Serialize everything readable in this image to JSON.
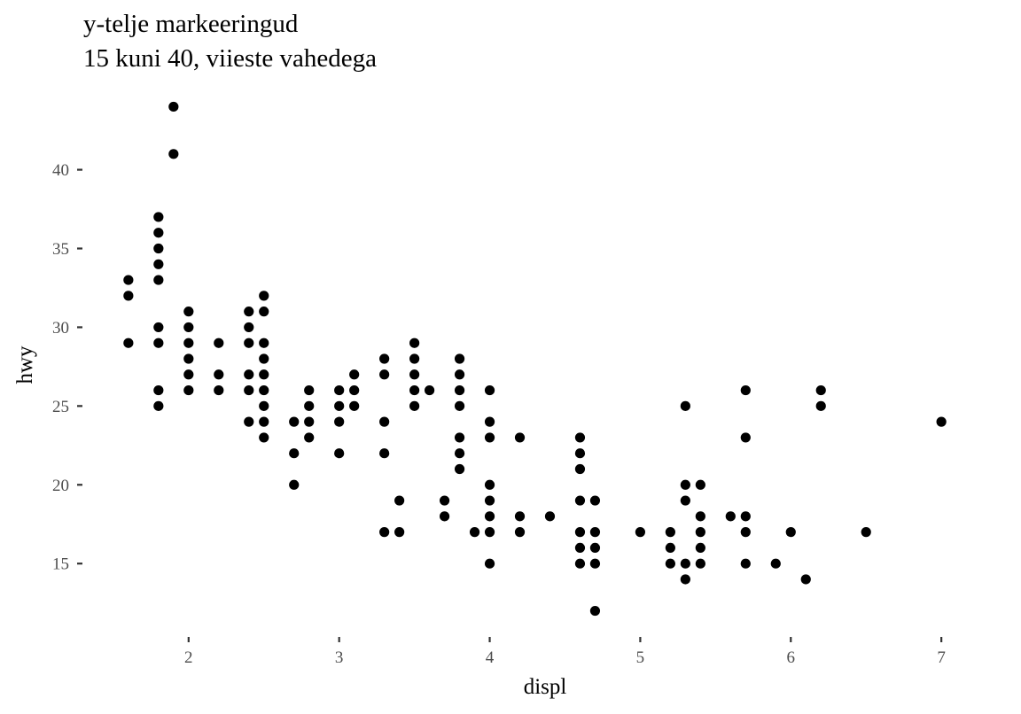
{
  "chart_data": {
    "type": "scatter",
    "title": "y-telje markeeringud",
    "subtitle": "15 kuni 40, viieste vahedega",
    "xlabel": "displ",
    "ylabel": "hwy",
    "xlim": [
      1.33,
      7.27
    ],
    "ylim": [
      10.4,
      45.6
    ],
    "x_ticks": [
      2,
      3,
      4,
      5,
      6,
      7
    ],
    "y_ticks": [
      15,
      20,
      25,
      30,
      35,
      40
    ],
    "grid": false,
    "point_color": "#000000",
    "points": [
      [
        1.6,
        33
      ],
      [
        1.6,
        32
      ],
      [
        1.6,
        29
      ],
      [
        1.8,
        37
      ],
      [
        1.8,
        36
      ],
      [
        1.8,
        35
      ],
      [
        1.8,
        34
      ],
      [
        1.8,
        33
      ],
      [
        1.8,
        30
      ],
      [
        1.8,
        29
      ],
      [
        1.8,
        26
      ],
      [
        1.8,
        25
      ],
      [
        1.9,
        44
      ],
      [
        1.9,
        41
      ],
      [
        2.0,
        31
      ],
      [
        2.0,
        30
      ],
      [
        2.0,
        29
      ],
      [
        2.0,
        28
      ],
      [
        2.0,
        27
      ],
      [
        2.0,
        26
      ],
      [
        2.2,
        29
      ],
      [
        2.2,
        27
      ],
      [
        2.2,
        26
      ],
      [
        2.4,
        31
      ],
      [
        2.4,
        30
      ],
      [
        2.4,
        29
      ],
      [
        2.4,
        27
      ],
      [
        2.4,
        26
      ],
      [
        2.4,
        24
      ],
      [
        2.5,
        32
      ],
      [
        2.5,
        31
      ],
      [
        2.5,
        29
      ],
      [
        2.5,
        28
      ],
      [
        2.5,
        27
      ],
      [
        2.5,
        26
      ],
      [
        2.5,
        25
      ],
      [
        2.5,
        24
      ],
      [
        2.5,
        23
      ],
      [
        2.7,
        24
      ],
      [
        2.7,
        22
      ],
      [
        2.7,
        20
      ],
      [
        2.8,
        26
      ],
      [
        2.8,
        25
      ],
      [
        2.8,
        24
      ],
      [
        2.8,
        23
      ],
      [
        3.0,
        26
      ],
      [
        3.0,
        25
      ],
      [
        3.0,
        24
      ],
      [
        3.0,
        22
      ],
      [
        3.1,
        27
      ],
      [
        3.1,
        26
      ],
      [
        3.1,
        25
      ],
      [
        3.3,
        28
      ],
      [
        3.3,
        27
      ],
      [
        3.3,
        24
      ],
      [
        3.3,
        22
      ],
      [
        3.3,
        17
      ],
      [
        3.4,
        19
      ],
      [
        3.4,
        17
      ],
      [
        3.5,
        29
      ],
      [
        3.5,
        28
      ],
      [
        3.5,
        27
      ],
      [
        3.5,
        26
      ],
      [
        3.5,
        25
      ],
      [
        3.6,
        26
      ],
      [
        3.7,
        19
      ],
      [
        3.7,
        18
      ],
      [
        3.8,
        28
      ],
      [
        3.8,
        27
      ],
      [
        3.8,
        26
      ],
      [
        3.8,
        25
      ],
      [
        3.8,
        23
      ],
      [
        3.8,
        22
      ],
      [
        3.8,
        21
      ],
      [
        3.9,
        17
      ],
      [
        4.0,
        26
      ],
      [
        4.0,
        24
      ],
      [
        4.0,
        23
      ],
      [
        4.0,
        20
      ],
      [
        4.0,
        19
      ],
      [
        4.0,
        18
      ],
      [
        4.0,
        17
      ],
      [
        4.0,
        15
      ],
      [
        4.2,
        23
      ],
      [
        4.2,
        18
      ],
      [
        4.2,
        17
      ],
      [
        4.4,
        18
      ],
      [
        4.6,
        23
      ],
      [
        4.6,
        22
      ],
      [
        4.6,
        21
      ],
      [
        4.6,
        19
      ],
      [
        4.6,
        17
      ],
      [
        4.6,
        16
      ],
      [
        4.6,
        15
      ],
      [
        4.7,
        19
      ],
      [
        4.7,
        17
      ],
      [
        4.7,
        16
      ],
      [
        4.7,
        15
      ],
      [
        4.7,
        12
      ],
      [
        5.0,
        17
      ],
      [
        5.2,
        17
      ],
      [
        5.2,
        16
      ],
      [
        5.2,
        15
      ],
      [
        5.3,
        25
      ],
      [
        5.3,
        20
      ],
      [
        5.3,
        19
      ],
      [
        5.3,
        15
      ],
      [
        5.3,
        14
      ],
      [
        5.4,
        20
      ],
      [
        5.4,
        18
      ],
      [
        5.4,
        17
      ],
      [
        5.4,
        16
      ],
      [
        5.4,
        15
      ],
      [
        5.6,
        18
      ],
      [
        5.7,
        26
      ],
      [
        5.7,
        23
      ],
      [
        5.7,
        18
      ],
      [
        5.7,
        17
      ],
      [
        5.7,
        15
      ],
      [
        5.9,
        15
      ],
      [
        6.0,
        17
      ],
      [
        6.1,
        14
      ],
      [
        6.2,
        26
      ],
      [
        6.2,
        25
      ],
      [
        6.5,
        17
      ],
      [
        7.0,
        24
      ]
    ]
  }
}
